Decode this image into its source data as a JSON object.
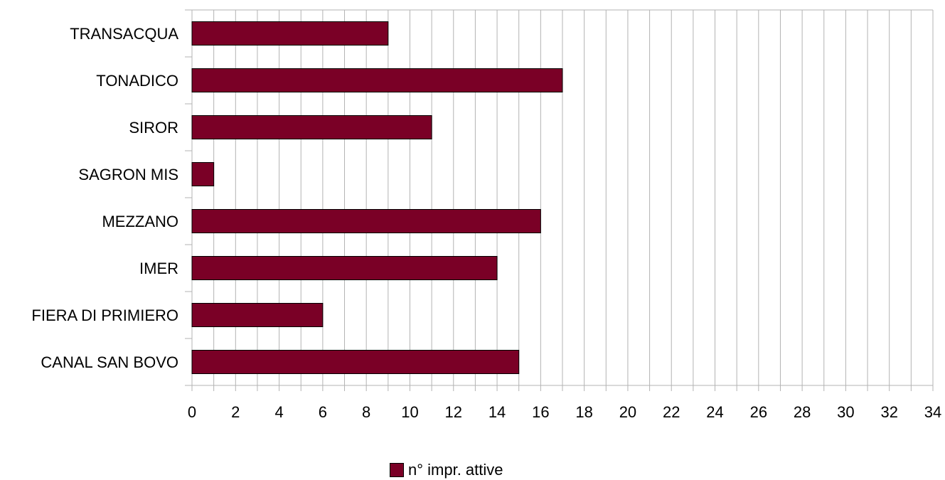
{
  "chart_data": {
    "type": "bar",
    "orientation": "horizontal",
    "categories": [
      "CANAL SAN BOVO",
      "FIERA DI PRIMIERO",
      "IMER",
      "MEZZANO",
      "SAGRON MIS",
      "SIROR",
      "TONADICO",
      "TRANSACQUA"
    ],
    "series": [
      {
        "name": "n° impr. attive",
        "values": [
          15,
          6,
          14,
          16,
          1,
          11,
          17,
          9
        ],
        "color": "#7a0026"
      }
    ],
    "xlim": [
      0,
      34
    ],
    "xticks": [
      "0",
      "2",
      "4",
      "6",
      "8",
      "10",
      "12",
      "14",
      "16",
      "18",
      "20",
      "22",
      "24",
      "26",
      "28",
      "30",
      "32",
      "34"
    ],
    "title": "",
    "xlabel": "",
    "ylabel": "",
    "grid": "vertical",
    "legend_position": "bottom"
  },
  "legend": {
    "label": "n° impr. attive"
  }
}
